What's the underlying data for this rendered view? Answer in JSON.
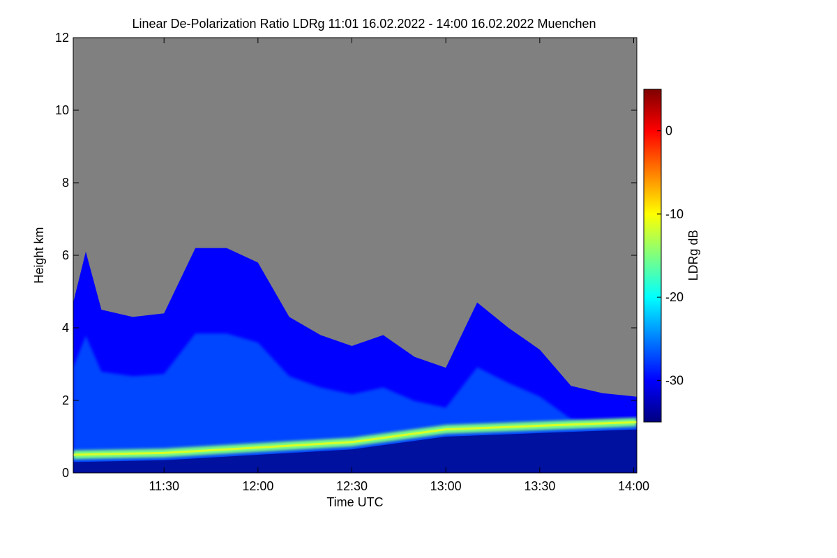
{
  "chart_data": {
    "type": "heatmap",
    "title": "Linear De-Polarization Ratio LDRg   11:01 16.02.2022 - 14:00 16.02.2022 Muenchen",
    "xlabel": "Time UTC",
    "ylabel": "Height km",
    "colorbar_label": "LDRg dB",
    "xlim": [
      "11:01",
      "14:01"
    ],
    "ylim": [
      0,
      12
    ],
    "x_ticks": [
      "11:30",
      "12:00",
      "12:30",
      "13:00",
      "13:30",
      "14:00"
    ],
    "y_ticks": [
      0,
      2,
      4,
      6,
      8,
      10,
      12
    ],
    "colorbar_range": [
      -35,
      5
    ],
    "colorbar_ticks": [
      0,
      -10,
      -20,
      -30
    ],
    "colormap": [
      "#00007f",
      "#0000ff",
      "#007fff",
      "#00ffff",
      "#7fff7f",
      "#ffff00",
      "#ff7f00",
      "#ff0000",
      "#7f0000"
    ],
    "background_no_signal": "#808080",
    "cloud_top_profile_km": [
      {
        "t": "11:01",
        "h": 4.7
      },
      {
        "t": "11:05",
        "h": 6.1
      },
      {
        "t": "11:10",
        "h": 4.5
      },
      {
        "t": "11:20",
        "h": 4.3
      },
      {
        "t": "11:30",
        "h": 4.4
      },
      {
        "t": "11:40",
        "h": 6.2
      },
      {
        "t": "11:50",
        "h": 6.2
      },
      {
        "t": "12:00",
        "h": 5.8
      },
      {
        "t": "12:10",
        "h": 4.3
      },
      {
        "t": "12:20",
        "h": 3.8
      },
      {
        "t": "12:30",
        "h": 3.5
      },
      {
        "t": "12:40",
        "h": 3.8
      },
      {
        "t": "12:50",
        "h": 3.2
      },
      {
        "t": "13:00",
        "h": 2.9
      },
      {
        "t": "13:10",
        "h": 4.7
      },
      {
        "t": "13:20",
        "h": 4.0
      },
      {
        "t": "13:30",
        "h": 3.4
      },
      {
        "t": "13:40",
        "h": 2.4
      },
      {
        "t": "13:50",
        "h": 2.2
      },
      {
        "t": "14:01",
        "h": 2.1
      }
    ],
    "boundary_layer_height_km": [
      {
        "t": "11:01",
        "h": 0.5
      },
      {
        "t": "11:30",
        "h": 0.55
      },
      {
        "t": "12:00",
        "h": 0.7
      },
      {
        "t": "12:30",
        "h": 0.85
      },
      {
        "t": "13:00",
        "h": 1.2
      },
      {
        "t": "13:30",
        "h": 1.3
      },
      {
        "t": "14:01",
        "h": 1.4
      }
    ],
    "grid": false,
    "colorbar_position": "right"
  }
}
